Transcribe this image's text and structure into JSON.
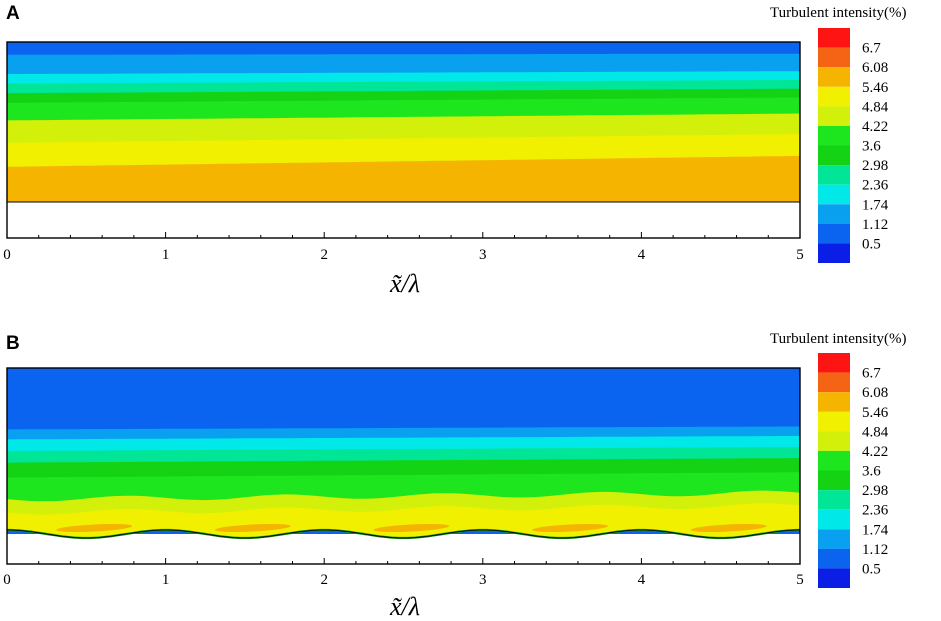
{
  "chart_data": [
    {
      "type": "heatmap",
      "panel_label": "A",
      "xlabel": "x̃/λ",
      "xlim": [
        0,
        5
      ],
      "xticks": [
        "0",
        "1",
        "2",
        "3",
        "4",
        "5"
      ],
      "legend_title": "Turbulent intensity(%)",
      "legend_position": "right",
      "wall": "flat",
      "contour_levels": [
        0.5,
        1.12,
        1.74,
        2.36,
        2.98,
        3.6,
        4.22,
        4.84,
        5.46,
        6.08,
        6.7
      ],
      "level_labels": [
        "6.7",
        "6.08",
        "5.46",
        "4.84",
        "4.22",
        "3.6",
        "2.98",
        "2.36",
        "1.74",
        "1.12",
        "0.5"
      ],
      "band_colors": [
        "#0a1ee6",
        "#0a64f0",
        "#0aa0f0",
        "#00e8e8",
        "#00e696",
        "#14d214",
        "#1ee61e",
        "#d2f00a",
        "#f0f000",
        "#f5b400",
        "#f56414",
        "#ff1414"
      ],
      "bands_bottom_to_top": [
        5.46,
        4.84,
        4.22,
        3.6,
        2.98,
        2.36,
        1.74,
        1.12,
        0.5
      ]
    },
    {
      "type": "heatmap",
      "panel_label": "B",
      "xlabel": "x̃/λ",
      "xlim": [
        0,
        5
      ],
      "xticks": [
        "0",
        "1",
        "2",
        "3",
        "4",
        "5"
      ],
      "legend_title": "Turbulent intensity(%)",
      "legend_position": "right",
      "wall": "wavy",
      "wave_periods": 5,
      "contour_levels": [
        0.5,
        1.12,
        1.74,
        2.36,
        2.98,
        3.6,
        4.22,
        4.84,
        5.46,
        6.08,
        6.7
      ],
      "level_labels": [
        "6.7",
        "6.08",
        "5.46",
        "4.84",
        "4.22",
        "3.6",
        "2.98",
        "2.36",
        "1.74",
        "1.12",
        "0.5"
      ],
      "band_colors": [
        "#0a1ee6",
        "#0a64f0",
        "#0aa0f0",
        "#00e8e8",
        "#00e696",
        "#14d214",
        "#1ee61e",
        "#d2f00a",
        "#f0f000",
        "#f5b400",
        "#f56414",
        "#ff1414"
      ],
      "bands_bottom_to_top": [
        4.84,
        4.22,
        3.6,
        2.98,
        2.36,
        1.74,
        1.12,
        0.5
      ],
      "local_maximum": 5.46
    }
  ]
}
